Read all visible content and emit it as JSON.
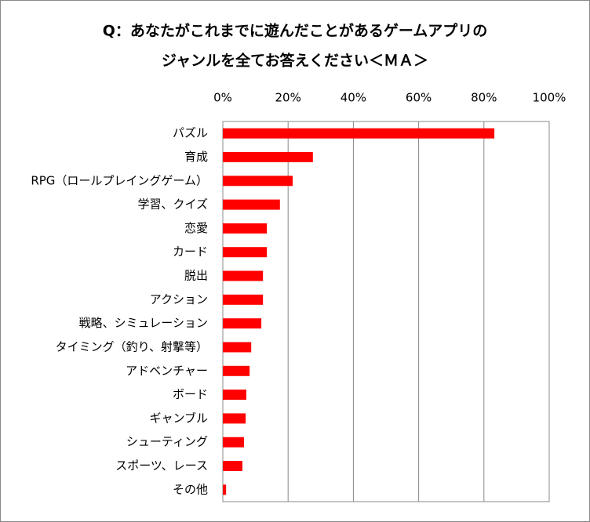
{
  "chart_data": {
    "type": "bar",
    "orientation": "horizontal",
    "title": [
      "Q：あなたがこれまでに遊んだことがあるゲームアプリの",
      "ジャンルを全てお答えください＜ＭＡ＞"
    ],
    "categories": [
      "パズル",
      "育成",
      "RPG（ロールプレイングゲーム）",
      "学習、クイズ",
      "恋愛",
      "カード",
      "脱出",
      "アクション",
      "戦略、シミュレーション",
      "タイミング（釣り、射撃等）",
      "アドベンチャー",
      "ボード",
      "ギャンブル",
      "シューティング",
      "スポーツ、レース",
      "その他"
    ],
    "values": [
      83.2,
      27.6,
      21.4,
      17.5,
      13.5,
      13.5,
      12.3,
      12.3,
      11.8,
      8.7,
      8.2,
      7.2,
      7.0,
      6.5,
      6.0,
      1.0
    ],
    "color": "#ff0000",
    "xlim": [
      0,
      100
    ],
    "xticks": [
      {
        "value": 0,
        "label": "0%"
      },
      {
        "value": 20,
        "label": "20%"
      },
      {
        "value": 40,
        "label": "40%"
      },
      {
        "value": 60,
        "label": "60%"
      },
      {
        "value": 80,
        "label": "80%"
      },
      {
        "value": 100,
        "label": "100%"
      }
    ],
    "grid": true
  }
}
